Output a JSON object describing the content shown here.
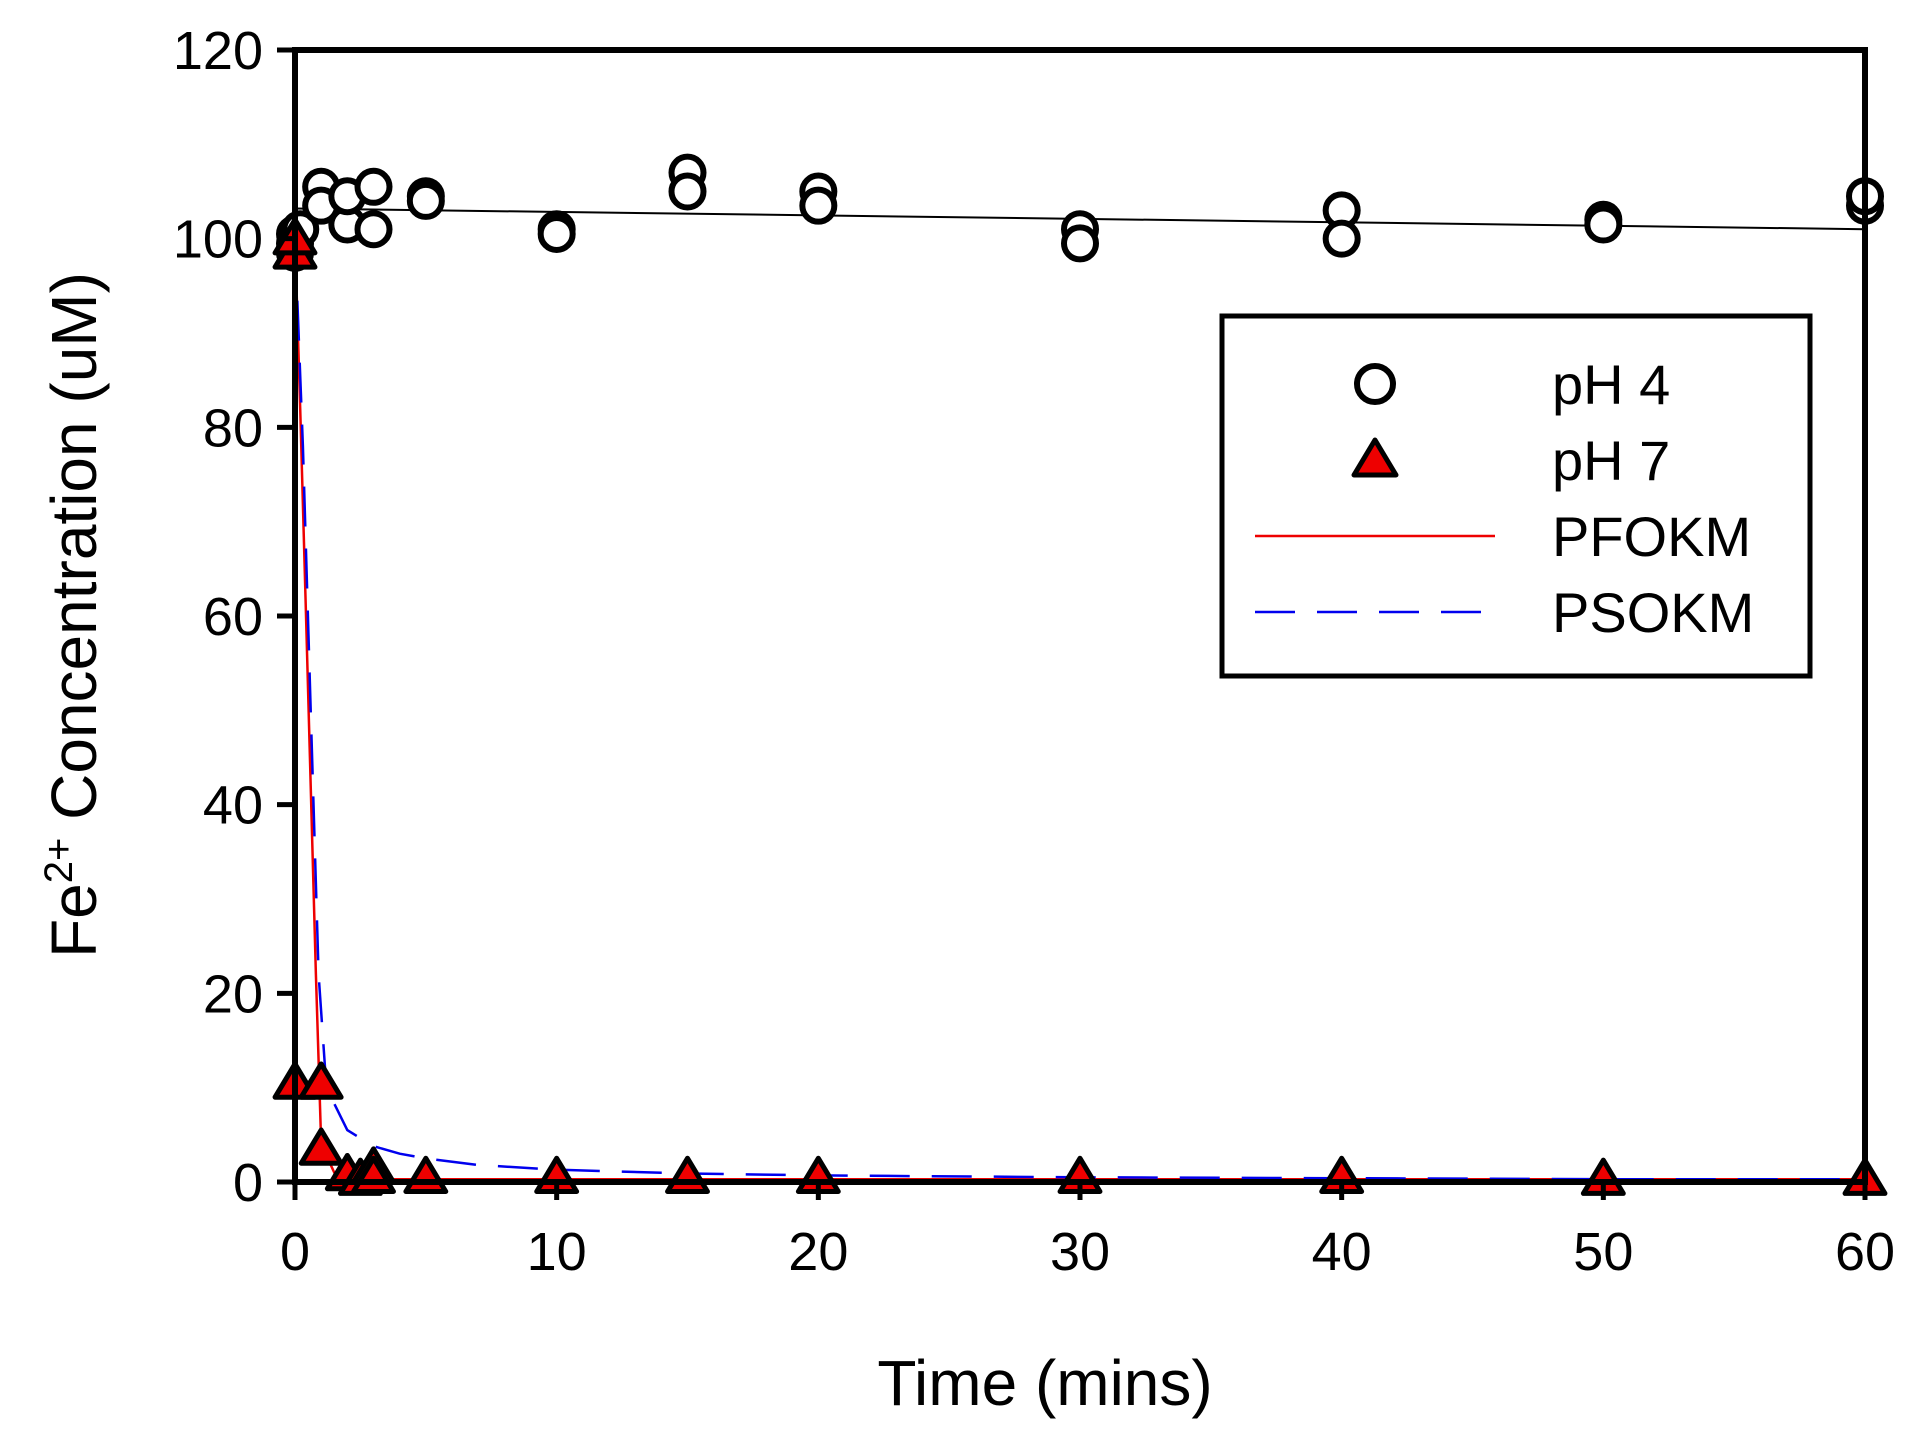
{
  "chart_data": {
    "type": "scatter",
    "title": "",
    "xlabel": "Time (mins)",
    "ylabel_main": "Fe",
    "ylabel_sup": "2+",
    "ylabel_rest": " Concentration (uM)",
    "xlim": [
      0,
      60
    ],
    "ylim": [
      0,
      120
    ],
    "xticks": [
      0,
      10,
      20,
      30,
      40,
      50,
      60
    ],
    "yticks": [
      0,
      20,
      40,
      60,
      80,
      100,
      120
    ],
    "grid": false,
    "legend_position": "top-right",
    "series": [
      {
        "name": "pH 4",
        "kind": "points",
        "marker": "circle-open",
        "color": "#000000",
        "points": [
          [
            0,
            100.5
          ],
          [
            0,
            99.5
          ],
          [
            0,
            98.5
          ],
          [
            0.2,
            101.0
          ],
          [
            1,
            105.5
          ],
          [
            1,
            103.5
          ],
          [
            2,
            101.5
          ],
          [
            2,
            104.5
          ],
          [
            3,
            105.5
          ],
          [
            3,
            101.0
          ],
          [
            5,
            104.5
          ],
          [
            5,
            104.0
          ],
          [
            10,
            101.0
          ],
          [
            10,
            100.5
          ],
          [
            15,
            107.0
          ],
          [
            15,
            105.0
          ],
          [
            20,
            105.0
          ],
          [
            20,
            103.5
          ],
          [
            30,
            101.0
          ],
          [
            30,
            99.5
          ],
          [
            40,
            103.0
          ],
          [
            40,
            100.0
          ],
          [
            50,
            102.0
          ],
          [
            50,
            101.5
          ],
          [
            60,
            103.5
          ],
          [
            60,
            104.5
          ]
        ]
      },
      {
        "name": "pH 7",
        "kind": "points",
        "marker": "triangle",
        "color": "#ee0000",
        "points": [
          [
            0,
            98.5
          ],
          [
            0,
            100.0
          ],
          [
            0,
            10.5
          ],
          [
            1,
            10.5
          ],
          [
            1,
            3.5
          ],
          [
            2,
            0.8
          ],
          [
            2.5,
            0.3
          ],
          [
            3,
            1.5
          ],
          [
            3,
            0.5
          ],
          [
            5,
            0.5
          ],
          [
            10,
            0.5
          ],
          [
            15,
            0.5
          ],
          [
            20,
            0.5
          ],
          [
            30,
            0.5
          ],
          [
            40,
            0.5
          ],
          [
            50,
            0.3
          ],
          [
            60,
            0.3
          ]
        ]
      },
      {
        "name": "pH 4 fit",
        "kind": "line",
        "legend": false,
        "color": "#000000",
        "points": [
          [
            0,
            103.2
          ],
          [
            60,
            101.0
          ]
        ]
      },
      {
        "name": "PFOKM",
        "kind": "line",
        "style": "solid",
        "color": "#ee0000",
        "points": [
          [
            0,
            100
          ],
          [
            0.2,
            82
          ],
          [
            0.4,
            62
          ],
          [
            0.6,
            42
          ],
          [
            0.8,
            22
          ],
          [
            1.0,
            4.0
          ],
          [
            1.5,
            1.0
          ],
          [
            2,
            0.5
          ],
          [
            3,
            0.3
          ],
          [
            5,
            0.3
          ],
          [
            10,
            0.3
          ],
          [
            20,
            0.3
          ],
          [
            30,
            0.3
          ],
          [
            40,
            0.3
          ],
          [
            50,
            0.3
          ],
          [
            60,
            0.3
          ]
        ]
      },
      {
        "name": "PSOKM",
        "kind": "line",
        "style": "dashed",
        "color": "#0000ee",
        "points": [
          [
            0,
            100
          ],
          [
            0.3,
            78
          ],
          [
            0.6,
            50
          ],
          [
            0.9,
            22
          ],
          [
            1.2,
            10
          ],
          [
            2,
            5.5
          ],
          [
            3,
            3.8
          ],
          [
            4,
            3.0
          ],
          [
            5,
            2.5
          ],
          [
            7,
            1.8
          ],
          [
            10,
            1.3
          ],
          [
            15,
            0.9
          ],
          [
            20,
            0.7
          ],
          [
            30,
            0.5
          ],
          [
            40,
            0.4
          ],
          [
            50,
            0.3
          ],
          [
            60,
            0.3
          ]
        ]
      }
    ]
  }
}
